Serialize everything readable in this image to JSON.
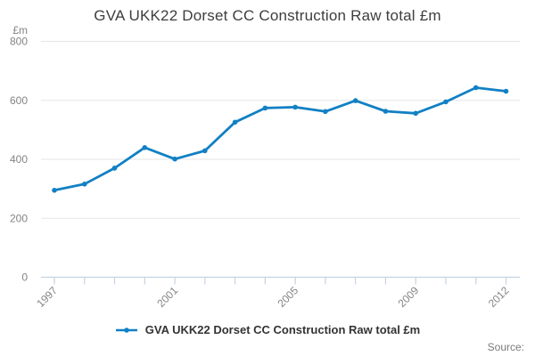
{
  "title": "GVA UKK22 Dorset CC Construction Raw total £m",
  "y_axis": {
    "unit_label": "£m",
    "tick_labels": [
      "800",
      "600",
      "400",
      "200",
      "0"
    ],
    "tick_values": [
      800,
      600,
      400,
      200,
      0
    ]
  },
  "x_axis": {
    "labeled_years": [
      "1997",
      "2001",
      "2005",
      "2009",
      "2012"
    ]
  },
  "legend": {
    "label": "GVA UKK22 Dorset CC Construction Raw total £m"
  },
  "source_label": "Source:",
  "colors": {
    "line": "#1180c4",
    "grid": "#e6e6e6",
    "axis": "#c5d3e4",
    "axis_text": "#848484",
    "title_text": "#3e3e3e",
    "legend_text": "#333333",
    "source_text": "#7b7b7b"
  },
  "chart_data": {
    "type": "line",
    "title": "GVA UKK22 Dorset CC Construction Raw total £m",
    "xlabel": "",
    "ylabel": "£m",
    "ylim": [
      0,
      800
    ],
    "grid": true,
    "legend_position": "bottom",
    "x": [
      1997,
      1998,
      1999,
      2000,
      2001,
      2002,
      2003,
      2004,
      2005,
      2006,
      2007,
      2008,
      2009,
      2010,
      2011,
      2012
    ],
    "series": [
      {
        "name": "GVA UKK22 Dorset CC Construction Raw total £m",
        "values": [
          295,
          316,
          370,
          440,
          401,
          429,
          526,
          574,
          577,
          562,
          599,
          563,
          556,
          595,
          643,
          631
        ]
      }
    ]
  }
}
